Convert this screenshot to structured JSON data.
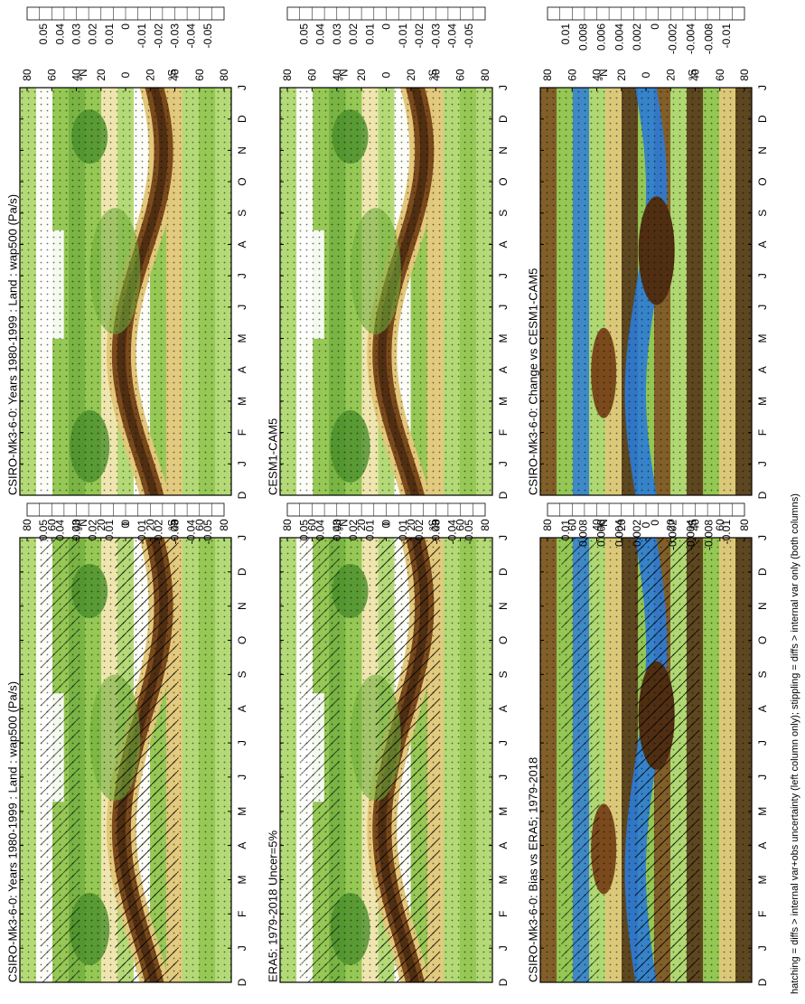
{
  "footnote": "hatching = diffs > internal var+obs uncertainty (left column only); stippling = diffs > internal var only (both columns)",
  "palette": {
    "blue_dark": "#2b7bd6",
    "blue_light": "#8ec6f2",
    "green_1": "#2f6b1f",
    "green_2": "#4a8f2c",
    "green_3": "#6fae3a",
    "green_4": "#8fc44d",
    "green_5": "#b0d872",
    "green_6": "#d2ea9f",
    "white": "#ffffff",
    "tan_1": "#f2e6b0",
    "tan_2": "#e3c77a",
    "tan_3": "#c99a45",
    "brown_1": "#a06a2a",
    "brown_2": "#7a4a1c",
    "brown_3": "#4f2e12"
  },
  "chart_data": [
    {
      "type": "heatmap",
      "id": "csiro-bottom-left",
      "title": "CSIRO-Mk3-6-0: Years 1980-1999 : Land : wap500 (Pa/s)",
      "xlabel": "",
      "ylabel": "",
      "x_ticks": [
        "D",
        "J",
        "F",
        "M",
        "A",
        "M",
        "J",
        "J",
        "A",
        "S",
        "O",
        "N",
        "D",
        "J"
      ],
      "y_ticks": [
        "80",
        "60",
        "40",
        "20",
        "0",
        "20",
        "40",
        "60",
        "80"
      ],
      "y_hemisphere_labels": [
        "°N",
        "°S"
      ],
      "colorbar_ticks": [
        "0.05",
        "0.04",
        "0.03",
        "0.02",
        "0.01",
        "0",
        "-0.01",
        "-0.02",
        "-0.03",
        "-0.04",
        "-0.05"
      ],
      "hatching": true,
      "stippling": true
    },
    {
      "type": "heatmap",
      "id": "csiro-bottom-right",
      "title": "CSIRO-Mk3-6-0: Years 1980-1999 : Land : wap500 (Pa/s)",
      "xlabel": "",
      "ylabel": "",
      "x_ticks": [
        "D",
        "J",
        "F",
        "M",
        "A",
        "M",
        "J",
        "J",
        "A",
        "S",
        "O",
        "N",
        "D",
        "J"
      ],
      "y_ticks": [
        "80",
        "60",
        "40",
        "20",
        "0",
        "20",
        "40",
        "60",
        "80"
      ],
      "y_hemisphere_labels": [
        "°N",
        "°S"
      ],
      "colorbar_ticks": [
        "0.05",
        "0.04",
        "0.03",
        "0.02",
        "0.01",
        "0",
        "-0.01",
        "-0.02",
        "-0.03",
        "-0.04",
        "-0.05"
      ],
      "hatching": false,
      "stippling": true
    },
    {
      "type": "heatmap",
      "id": "era5",
      "title": "ERA5: 1979-2018 Uncer=5%",
      "xlabel": "",
      "ylabel": "",
      "x_ticks": [
        "D",
        "J",
        "F",
        "M",
        "A",
        "M",
        "J",
        "J",
        "A",
        "S",
        "O",
        "N",
        "D",
        "J"
      ],
      "y_ticks": [
        "80",
        "60",
        "40",
        "20",
        "0",
        "20",
        "40",
        "60",
        "80"
      ],
      "y_hemisphere_labels": [
        "°N",
        "°S"
      ],
      "colorbar_ticks": [
        "0.05",
        "0.04",
        "0.03",
        "0.02",
        "0.01",
        "0",
        "-0.01",
        "-0.02",
        "-0.03",
        "-0.04",
        "-0.05"
      ],
      "hatching": true,
      "stippling": true
    },
    {
      "type": "heatmap",
      "id": "cesm",
      "title": "CESM1-CAM5",
      "xlabel": "",
      "ylabel": "",
      "x_ticks": [
        "D",
        "J",
        "F",
        "M",
        "A",
        "M",
        "J",
        "J",
        "A",
        "S",
        "O",
        "N",
        "D",
        "J"
      ],
      "y_ticks": [
        "80",
        "60",
        "40",
        "20",
        "0",
        "20",
        "40",
        "60",
        "80"
      ],
      "y_hemisphere_labels": [
        "°N",
        "°S"
      ],
      "colorbar_ticks": [
        "0.05",
        "0.04",
        "0.03",
        "0.02",
        "0.01",
        "0",
        "-0.01",
        "-0.02",
        "-0.03",
        "-0.04",
        "-0.05"
      ],
      "hatching": false,
      "stippling": true
    },
    {
      "type": "heatmap",
      "id": "bias-era5",
      "title": "CSIRO-Mk3-6-0: Bias vs ERA5; 1979-2018",
      "xlabel": "",
      "ylabel": "",
      "x_ticks": [
        "D",
        "J",
        "F",
        "M",
        "A",
        "M",
        "J",
        "J",
        "A",
        "S",
        "O",
        "N",
        "D",
        "J"
      ],
      "y_ticks": [
        "80",
        "60",
        "40",
        "20",
        "0",
        "20",
        "40",
        "60",
        "80"
      ],
      "y_hemisphere_labels": [
        "°N",
        "°S"
      ],
      "colorbar_ticks": [
        "0.01",
        "0.008",
        "0.006",
        "0.004",
        "0.002",
        "0",
        "-0.002",
        "-0.004",
        "-0.008",
        "-0.01"
      ],
      "hatching": true,
      "stippling": true
    },
    {
      "type": "heatmap",
      "id": "change-cesm",
      "title": "CSIRO-Mk3-6-0: Change vs CESM1-CAM5",
      "xlabel": "",
      "ylabel": "",
      "x_ticks": [
        "D",
        "J",
        "F",
        "M",
        "A",
        "M",
        "J",
        "J",
        "A",
        "S",
        "O",
        "N",
        "D",
        "J"
      ],
      "y_ticks": [
        "80",
        "60",
        "40",
        "20",
        "0",
        "20",
        "40",
        "60",
        "80"
      ],
      "y_hemisphere_labels": [
        "°N",
        "°S"
      ],
      "colorbar_ticks": [
        "0.01",
        "0.008",
        "0.006",
        "0.004",
        "0.002",
        "0",
        "-0.002",
        "-0.004",
        "-0.008",
        "-0.01"
      ],
      "hatching": false,
      "stippling": true
    }
  ]
}
